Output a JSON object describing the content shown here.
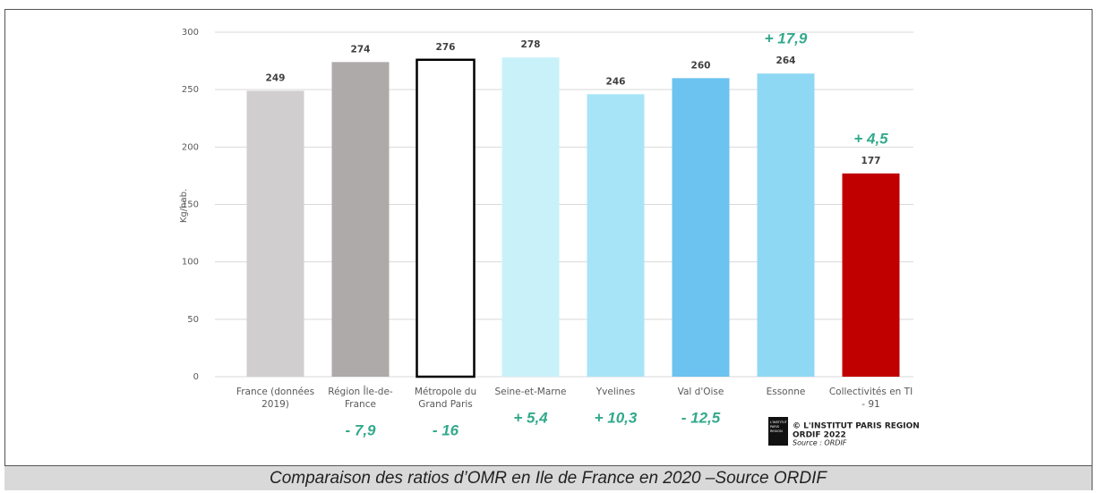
{
  "chart_data": {
    "type": "bar",
    "y_label": "Kg/hab.",
    "categories": [
      "France (données 2019)",
      "Région Île-de-France",
      "Métropole du Grand Paris",
      "Seine-et-Marne",
      "Yvelines",
      "Val d'Oise",
      "Essonne",
      "Collectivités en TI - 91"
    ],
    "values": [
      249,
      274,
      276,
      278,
      246,
      260,
      264,
      177
    ],
    "colors": [
      "#d0cece",
      "#aeaaaa",
      "#ffffff",
      "#c9f1fa",
      "#a8e4f7",
      "#6cc3ef",
      "#8fd8f4",
      "#c00000"
    ],
    "variations": [
      null,
      "- 7,9",
      "- 16",
      "+ 5,4",
      "+ 10,3",
      "- 12,5",
      "+ 17,9",
      "+ 4,5"
    ],
    "variation_color": "#32a98c",
    "ylim": [
      0,
      300
    ],
    "yticks": [
      0,
      50,
      100,
      150,
      200,
      250,
      300
    ],
    "grid": true,
    "logo_text": "L'INSTITUT PARIS REGION",
    "credit": [
      "© L'INSTITUT PARIS REGION",
      "ORDIF 2022",
      "Source : ORDIF"
    ],
    "caption": "Comparaison des ratios d’OMR en Ile de France en 2020 –Source ORDIF"
  }
}
